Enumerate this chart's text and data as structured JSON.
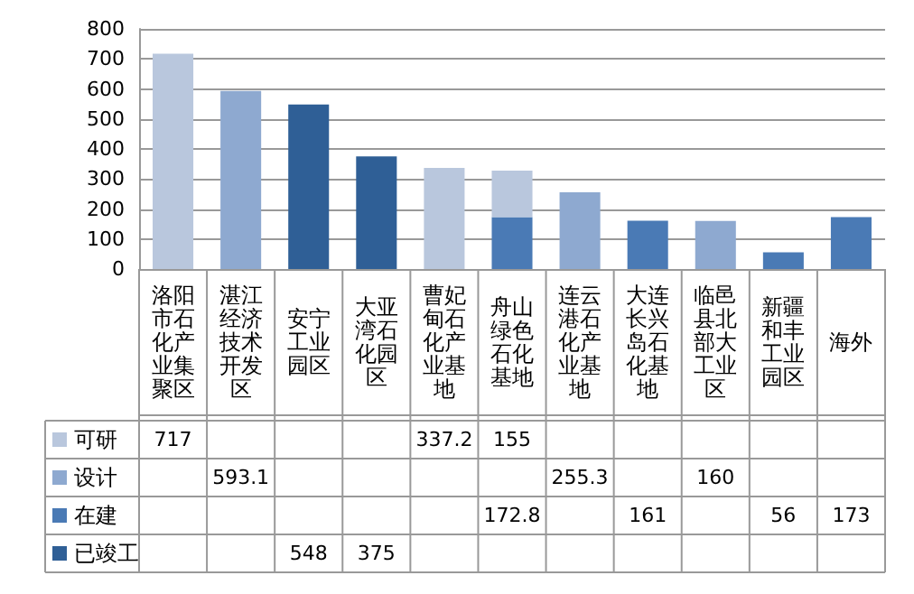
{
  "chart_data": {
    "type": "bar",
    "stacked": true,
    "categories": [
      "洛阳市石化产业集聚区",
      "湛江经济技术开发区",
      "安宁工业园区",
      "大亚湾石化园区",
      "曹妃甸石化产业基地",
      "舟山绿色石化基地",
      "连云港石化产业基地",
      "大连长兴岛石化基地",
      "临邑县北部大工业区",
      "新疆和丰工业园区",
      "海外"
    ],
    "series": [
      {
        "name": "已竣工",
        "color": "#2f5f96",
        "values": [
          null,
          null,
          548,
          375,
          null,
          null,
          null,
          null,
          null,
          null,
          null
        ]
      },
      {
        "name": "在建",
        "color": "#4a7ab5",
        "values": [
          null,
          null,
          null,
          null,
          null,
          172.8,
          null,
          161,
          null,
          56,
          173
        ]
      },
      {
        "name": "设计",
        "color": "#8ea9d0",
        "values": [
          null,
          593.1,
          null,
          null,
          null,
          null,
          255.3,
          null,
          160,
          null,
          null
        ]
      },
      {
        "name": "可研",
        "color": "#b9c7dd",
        "values": [
          717,
          null,
          null,
          null,
          337.2,
          155,
          null,
          null,
          null,
          null,
          null
        ]
      }
    ],
    "ylim": [
      0,
      800
    ],
    "yticks": [
      0,
      100,
      200,
      300,
      400,
      500,
      600,
      700,
      800
    ],
    "grid": "y",
    "legend": "bottom",
    "data_labels": true
  }
}
